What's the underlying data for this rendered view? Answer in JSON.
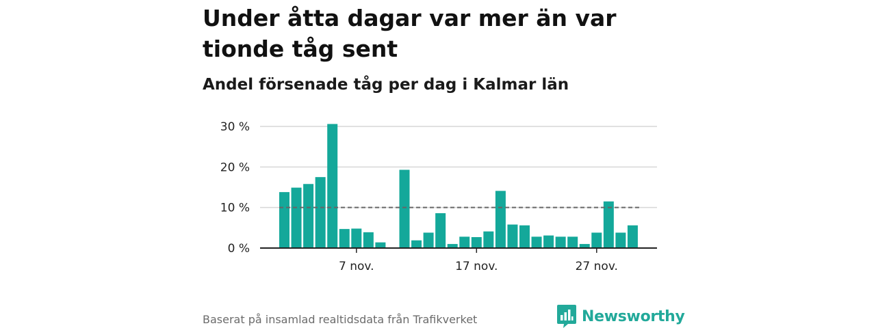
{
  "title": "Under åtta dagar var mer än var tionde tåg sent",
  "subtitle": "Andel försenade tåg per dag i Kalmar län",
  "source": "Baserat på insamlad realtidsdata från Trafikverket",
  "brand": {
    "name": "Newsworthy",
    "icon": "newsworthy-logo-icon",
    "color": "#22a99a"
  },
  "colors": {
    "bar": "#14a89a",
    "grid": "#d6d6d6",
    "reference_line": "#666666",
    "axis": "#222222"
  },
  "chart_data": {
    "type": "bar",
    "x": [
      "1 nov.",
      "2 nov.",
      "3 nov.",
      "4 nov.",
      "5 nov.",
      "6 nov.",
      "7 nov.",
      "8 nov.",
      "9 nov.",
      "10 nov.",
      "11 nov.",
      "12 nov.",
      "13 nov.",
      "14 nov.",
      "15 nov.",
      "16 nov.",
      "17 nov.",
      "18 nov.",
      "19 nov.",
      "20 nov.",
      "21 nov.",
      "22 nov.",
      "23 nov.",
      "24 nov.",
      "25 nov.",
      "26 nov.",
      "27 nov.",
      "28 nov.",
      "29 nov.",
      "30 nov."
    ],
    "values": [
      13.8,
      14.9,
      15.8,
      17.5,
      30.6,
      4.7,
      4.8,
      3.9,
      1.4,
      null,
      19.3,
      1.9,
      3.8,
      8.6,
      1.0,
      2.8,
      2.7,
      4.1,
      14.1,
      5.8,
      5.6,
      2.8,
      3.1,
      2.8,
      2.8,
      1.0,
      3.8,
      11.5,
      3.8,
      5.6
    ],
    "ylim": [
      0,
      30
    ],
    "yticks": [
      0,
      10,
      20,
      30
    ],
    "ytick_labels": [
      "0 %",
      "10 %",
      "20 %",
      "30 %"
    ],
    "xticks": [
      {
        "index": 6,
        "label": "7 nov."
      },
      {
        "index": 16,
        "label": "17 nov."
      },
      {
        "index": 26,
        "label": "27 nov."
      }
    ],
    "reference_line": 10,
    "grid": true
  }
}
